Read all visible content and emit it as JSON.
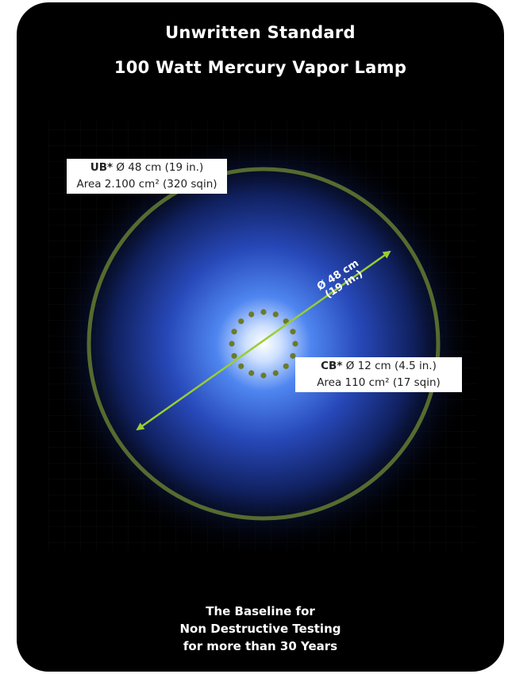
{
  "title": {
    "line1": "Unwritten Standard",
    "line2": "100 Watt Mercury Vapor Lamp"
  },
  "ub": {
    "label": "UB*",
    "diameter": "Ø 48 cm (19 in.)",
    "area": "Area 2.100 cm² (320 sqin)"
  },
  "cb": {
    "label": "CB*",
    "diameter": "Ø 12 cm (4.5 in.)",
    "area": "Area 110 cm² (17 sqin)"
  },
  "diameter_marker": {
    "line1": "Ø 48 cm",
    "line2": "(19 in.)"
  },
  "footer": {
    "line1": "The Baseline for",
    "line2": "Non Destructive Testing",
    "line3": "for more than 30 Years"
  },
  "colors": {
    "background": "#000000",
    "outer_ring": "#556b2f",
    "arrow": "#9acd32",
    "inner_dots": "#6b7a2a",
    "glow": "#2f5ad8"
  }
}
